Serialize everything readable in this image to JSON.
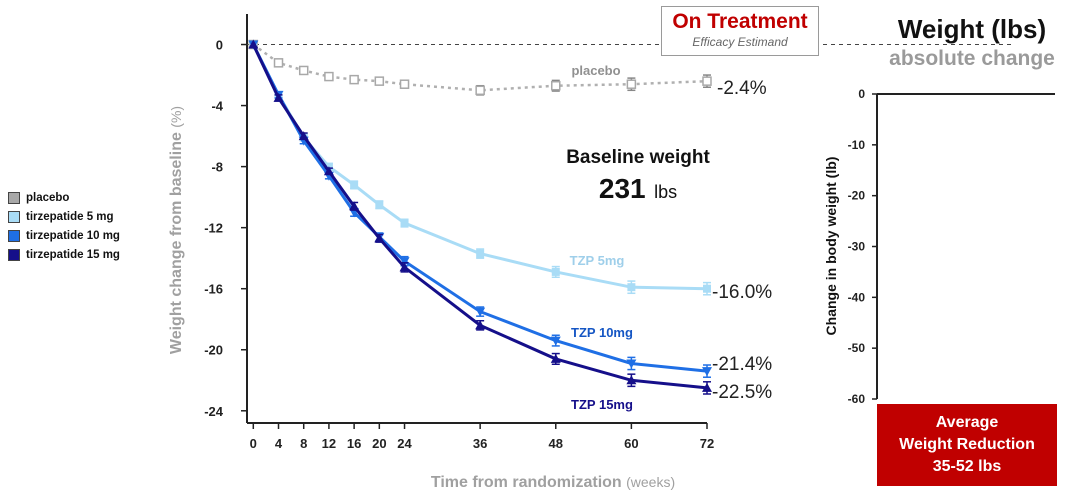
{
  "chart_data": [
    {
      "type": "line",
      "xlabel": "Time from randomization",
      "xlabel_unit": "(weeks)",
      "ylabel": "Weight change from baseline",
      "ylabel_unit": "(%)",
      "x": [
        0,
        4,
        8,
        12,
        16,
        20,
        24,
        36,
        48,
        60,
        72
      ],
      "x_ticks": [
        "0",
        "4",
        "8",
        "12",
        "16",
        "20",
        "24",
        "36",
        "48",
        "60",
        "72"
      ],
      "xlim": [
        -1,
        72
      ],
      "ylim": [
        -24.8,
        2
      ],
      "y_ticks": [
        "0",
        "-4",
        "-8",
        "-12",
        "-16",
        "-20",
        "-24"
      ],
      "y_tick_values": [
        0,
        -4,
        -8,
        -12,
        -16,
        -20,
        -24
      ],
      "zero_line": "dashed",
      "series": [
        {
          "name": "placebo",
          "label": "placebo",
          "end_label": "-2.4%",
          "color": "#b0b0b0",
          "label_color": "#909090",
          "marker": "square-open",
          "line_style": "dotted",
          "values": [
            0,
            -1.2,
            -1.7,
            -2.1,
            -2.3,
            -2.4,
            -2.6,
            -3.0,
            -2.7,
            -2.6,
            -2.4
          ],
          "error": [
            0,
            0.2,
            0.2,
            0.2,
            0.2,
            0.2,
            0.25,
            0.3,
            0.35,
            0.4,
            0.4
          ]
        },
        {
          "name": "tirzepatide 5 mg",
          "label": "TZP 5mg",
          "end_label": "-16.0%",
          "color": "#a9dcf6",
          "label_color": "#9fcfea",
          "marker": "square",
          "line_style": "solid",
          "values": [
            0,
            -3.3,
            -6.1,
            -8.0,
            -9.2,
            -10.5,
            -11.7,
            -13.7,
            -14.9,
            -15.9,
            -16.0
          ],
          "error": [
            0,
            0.2,
            0.2,
            0.2,
            0.25,
            0.25,
            0.25,
            0.3,
            0.35,
            0.4,
            0.4
          ]
        },
        {
          "name": "tirzepatide 10 mg",
          "label": "TZP 10mg",
          "end_label": "-21.4%",
          "color": "#1f6fe5",
          "label_color": "#1556c4",
          "marker": "triangle-down",
          "line_style": "solid",
          "values": [
            0,
            -3.3,
            -6.3,
            -8.6,
            -11.0,
            -12.6,
            -14.2,
            -17.5,
            -19.4,
            -20.9,
            -21.4
          ],
          "error": [
            0,
            0.2,
            0.2,
            0.2,
            0.25,
            0.25,
            0.3,
            0.3,
            0.35,
            0.4,
            0.4
          ]
        },
        {
          "name": "tirzepatide 15 mg",
          "label": "TZP 15mg",
          "end_label": "-22.5%",
          "color": "#150f8a",
          "label_color": "#150f8a",
          "marker": "triangle-up",
          "line_style": "solid",
          "values": [
            0,
            -3.5,
            -6.0,
            -8.3,
            -10.6,
            -12.7,
            -14.6,
            -18.4,
            -20.6,
            -22.0,
            -22.5
          ],
          "error": [
            0,
            0.2,
            0.2,
            0.2,
            0.25,
            0.25,
            0.3,
            0.3,
            0.35,
            0.4,
            0.4
          ]
        }
      ]
    },
    {
      "type": "bar",
      "title": "Weight (lbs)",
      "subtitle": "absolute change",
      "ylabel": "Change in body weight (lb)",
      "ylim": [
        -60,
        0
      ],
      "y_ticks": [
        "0",
        "-10",
        "-20",
        "-30",
        "-40",
        "-50",
        "-60"
      ],
      "y_tick_values": [
        0,
        -10,
        -20,
        -30,
        -40,
        -50,
        -60
      ],
      "categories": [],
      "values": []
    }
  ],
  "legend": {
    "items": [
      {
        "label": "placebo",
        "color": "#a8a8a8"
      },
      {
        "label": "tirzepatide 5 mg",
        "color": "#a9dcf6"
      },
      {
        "label": "tirzepatide 10 mg",
        "color": "#1f6fe5"
      },
      {
        "label": "tirzepatide 15 mg",
        "color": "#150f8a"
      }
    ]
  },
  "on_treatment": {
    "title": "On Treatment",
    "subtitle": "Efficacy Estimand"
  },
  "baseline": {
    "title": "Baseline weight",
    "value": "231",
    "unit": "lbs"
  },
  "right_panel": {
    "title": "Weight (lbs)",
    "subtitle": "absolute change"
  },
  "average_box": {
    "line1": "Average",
    "line2": "Weight Reduction",
    "line3": "35-52 lbs",
    "color": "#c00000"
  }
}
